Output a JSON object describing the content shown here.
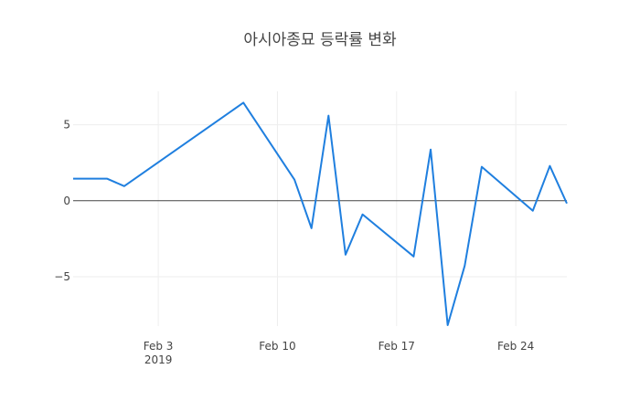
{
  "chart_data": {
    "type": "line",
    "title": "아시아종묘 등락률 변화",
    "x": [
      "2019-01-29",
      "2019-01-31",
      "2019-02-01",
      "2019-02-08",
      "2019-02-11",
      "2019-02-12",
      "2019-02-13",
      "2019-02-14",
      "2019-02-15",
      "2019-02-18",
      "2019-02-19",
      "2019-02-20",
      "2019-02-21",
      "2019-02-22",
      "2019-02-25",
      "2019-02-26",
      "2019-02-27"
    ],
    "series": [
      {
        "color": "#1f7fdf",
        "values": [
          1.45,
          1.45,
          0.96,
          6.45,
          1.39,
          -1.81,
          5.6,
          -3.55,
          -0.9,
          -3.67,
          3.37,
          -8.19,
          -4.28,
          2.23,
          -0.66,
          2.29,
          -0.18
        ]
      }
    ],
    "xlim": [
      "2019-01-29",
      "2019-02-27"
    ],
    "xticks": [
      {
        "value": "2019-02-03",
        "label": "Feb 3"
      },
      {
        "value": "2019-02-10",
        "label": "Feb 10"
      },
      {
        "value": "2019-02-17",
        "label": "Feb 17"
      },
      {
        "value": "2019-02-24",
        "label": "Feb 24"
      }
    ],
    "xtick_year": "2019",
    "ylim": [
      -8.25,
      7.2
    ],
    "yticks": [
      {
        "value": -5,
        "label": "−5"
      },
      0,
      5
    ],
    "grid": true
  }
}
